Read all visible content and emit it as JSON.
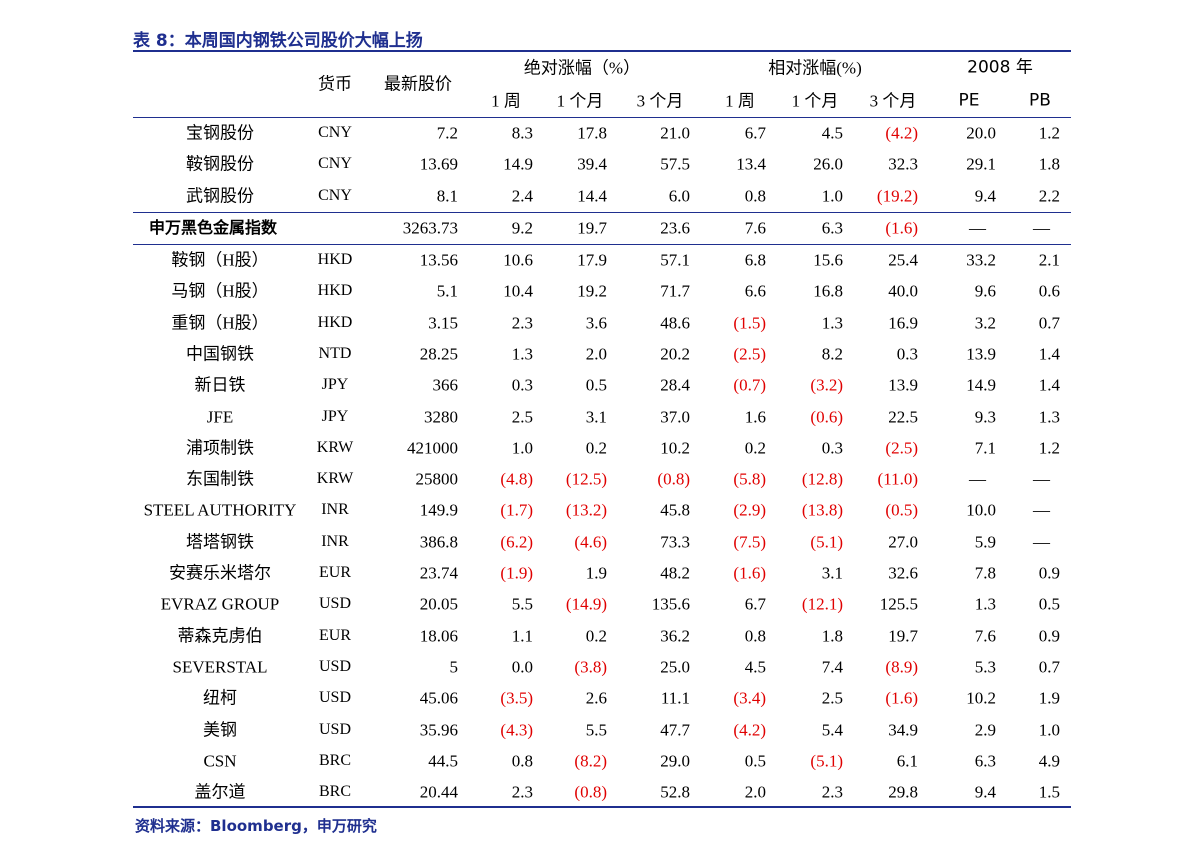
{
  "title": "表 8：本周国内钢铁公司股价大幅上扬",
  "table": {
    "header_top": [
      "货币",
      "最新股价",
      "绝对涨幅（%）",
      "相对涨幅(%)",
      "2008 年"
    ],
    "header_sub": [
      "1 周",
      "1 个月",
      "3 个月",
      "1 周",
      "1 个月",
      "3 个月",
      "PE",
      "PB"
    ],
    "rows": [
      [
        "宝钢股份",
        "CNY",
        "7.2",
        "8.3",
        "17.8",
        "21.0",
        "6.7",
        "4.5",
        "(4.2)",
        "20.0",
        "1.2"
      ],
      [
        "鞍钢股份",
        "CNY",
        "13.69",
        "14.9",
        "39.4",
        "57.5",
        "13.4",
        "26.0",
        "32.3",
        "29.1",
        "1.8"
      ],
      [
        "武钢股份",
        "CNY",
        "8.1",
        "2.4",
        "14.4",
        "6.0",
        "0.8",
        "1.0",
        "(19.2)",
        "9.4",
        "2.2"
      ],
      [
        "申万黑色金属指数",
        null,
        "3263.73",
        "9.2",
        "19.7",
        "23.6",
        "7.6",
        "6.3",
        "(1.6)",
        "—",
        "—"
      ],
      [
        "鞍钢（H股）",
        "HKD",
        "13.56",
        "10.6",
        "17.9",
        "57.1",
        "6.8",
        "15.6",
        "25.4",
        "33.2",
        "2.1"
      ],
      [
        "马钢（H股）",
        "HKD",
        "5.1",
        "10.4",
        "19.2",
        "71.7",
        "6.6",
        "16.8",
        "40.0",
        "9.6",
        "0.6"
      ],
      [
        "重钢（H股）",
        "HKD",
        "3.15",
        "2.3",
        "3.6",
        "48.6",
        "(1.5)",
        "1.3",
        "16.9",
        "3.2",
        "0.7"
      ],
      [
        "中国钢铁",
        "NTD",
        "28.25",
        "1.3",
        "2.0",
        "20.2",
        "(2.5)",
        "8.2",
        "0.3",
        "13.9",
        "1.4"
      ],
      [
        "新日铁",
        "JPY",
        "366",
        "0.3",
        "0.5",
        "28.4",
        "(0.7)",
        "(3.2)",
        "13.9",
        "14.9",
        "1.4"
      ],
      [
        "JFE",
        "JPY",
        "3280",
        "2.5",
        "3.1",
        "37.0",
        "1.6",
        "(0.6)",
        "22.5",
        "9.3",
        "1.3"
      ],
      [
        "浦项制铁",
        "KRW",
        "421000",
        "1.0",
        "0.2",
        "10.2",
        "0.2",
        "0.3",
        "(2.5)",
        "7.1",
        "1.2"
      ],
      [
        "东国制铁",
        "KRW",
        "25800",
        "(4.8)",
        "(12.5)",
        "(0.8)",
        "(5.8)",
        "(12.8)",
        "(11.0)",
        "—",
        "—"
      ],
      [
        "STEEL AUTHORITY",
        "INR",
        "149.9",
        "(1.7)",
        "(13.2)",
        "45.8",
        "(2.9)",
        "(13.8)",
        "(0.5)",
        "10.0",
        "—"
      ],
      [
        "塔塔钢铁",
        "INR",
        "386.8",
        "(6.2)",
        "(4.6)",
        "73.3",
        "(7.5)",
        "(5.1)",
        "27.0",
        "5.9",
        "—"
      ],
      [
        "安赛乐米塔尔",
        "EUR",
        "23.74",
        "(1.9)",
        "1.9",
        "48.2",
        "(1.6)",
        "3.1",
        "32.6",
        "7.8",
        "0.9"
      ],
      [
        "EVRAZ GROUP",
        "USD",
        "20.05",
        "5.5",
        "(14.9)",
        "135.6",
        "6.7",
        "(12.1)",
        "125.5",
        "1.3",
        "0.5"
      ],
      [
        "蒂森克虏伯",
        "EUR",
        "18.06",
        "1.1",
        "0.2",
        "36.2",
        "0.8",
        "1.8",
        "19.7",
        "7.6",
        "0.9"
      ],
      [
        "SEVERSTAL",
        "USD",
        "5",
        "0.0",
        "(3.8)",
        "25.0",
        "4.5",
        "7.4",
        "(8.9)",
        "5.3",
        "0.7"
      ],
      [
        "纽柯",
        "USD",
        "45.06",
        "(3.5)",
        "2.6",
        "11.1",
        "(3.4)",
        "2.5",
        "(1.6)",
        "10.2",
        "1.9"
      ],
      [
        "美钢",
        "USD",
        "35.96",
        "(4.3)",
        "5.5",
        "47.7",
        "(4.2)",
        "5.4",
        "34.9",
        "2.9",
        "1.0"
      ],
      [
        "CSN",
        "BRC",
        "44.5",
        "0.8",
        "(8.2)",
        "29.0",
        "0.5",
        "(5.1)",
        "6.1",
        "6.3",
        "4.9"
      ],
      [
        "盖尔道",
        "BRC",
        "20.44",
        "2.3",
        "(0.8)",
        "52.8",
        "2.0",
        "2.3",
        "29.8",
        "9.4",
        "1.5"
      ]
    ]
  },
  "source": "资料来源：Bloomberg，申万研究"
}
